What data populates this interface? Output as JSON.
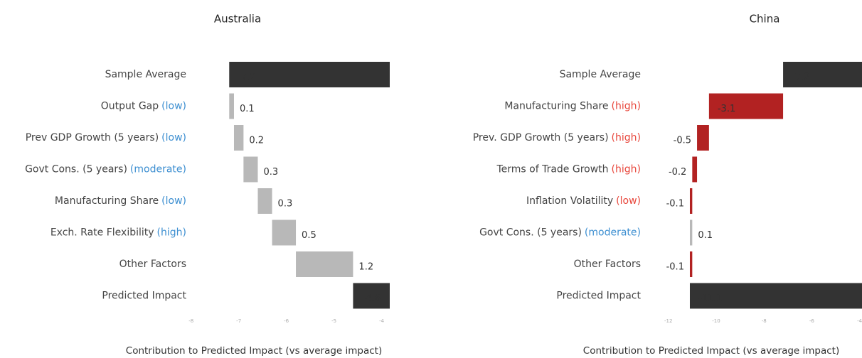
{
  "chart_data": [
    {
      "type": "waterfall",
      "title": "Australia",
      "categories": [
        "Sample Average",
        "Output Gap",
        "Prev GDP Growth (5 years)",
        "Govt Cons. (5 years)",
        "Manufacturing Share",
        "Exch. Rate Flexibility",
        "Other Factors",
        "Predicted Impact"
      ],
      "qualifiers": [
        null,
        "(low)",
        "(low)",
        "(moderate)",
        "(low)",
        "(high)",
        null,
        null
      ],
      "qualifier_colors": [
        null,
        "#3d8fd1",
        "#3d8fd1",
        "#3d8fd1",
        "#3d8fd1",
        "#3d8fd1",
        null,
        null
      ],
      "measure": [
        "absolute",
        "relative",
        "relative",
        "relative",
        "relative",
        "relative",
        "relative",
        "total"
      ],
      "values": [
        -7.2,
        0.1,
        0.2,
        0.3,
        0.3,
        0.5,
        1.2,
        -4.6
      ],
      "colors": {
        "total": "#333333",
        "increase": "#b8b8b8",
        "decrease": "#b22222"
      },
      "xlim": [
        -8.1,
        -3.83
      ],
      "xticks": [
        -8,
        -7,
        -6,
        -5,
        -4
      ],
      "xlabel": "Contribution to Predicted Impact (vs average impact)"
    },
    {
      "type": "waterfall",
      "title": "China",
      "categories": [
        "Sample Average",
        "Manufacturing Share",
        "Prev. GDP Growth (5 years)",
        "Terms of Trade Growth",
        "Inflation Volatility",
        "Govt Cons. (5 years)",
        "Other Factors",
        "Predicted Impact"
      ],
      "qualifiers": [
        null,
        "(high)",
        "(high)",
        "(high)",
        "(low)",
        "(moderate)",
        null,
        null
      ],
      "qualifier_colors": [
        null,
        "#e8473c",
        "#e8473c",
        "#e8473c",
        "#e8473c",
        "#3d8fd1",
        null,
        null
      ],
      "measure": [
        "absolute",
        "relative",
        "relative",
        "relative",
        "relative",
        "relative",
        "relative",
        "total"
      ],
      "values": [
        -7.2,
        -3.1,
        -0.5,
        -0.2,
        -0.1,
        0.1,
        -0.1,
        -11.1
      ],
      "colors": {
        "total": "#333333",
        "increase": "#b8b8b8",
        "decrease": "#b22222"
      },
      "xlim": [
        -12.2,
        -3.9
      ],
      "xticks": [
        -12,
        -10,
        -8,
        -6,
        -4
      ],
      "xlabel": "Contribution to Predicted Impact (vs average impact)"
    }
  ]
}
